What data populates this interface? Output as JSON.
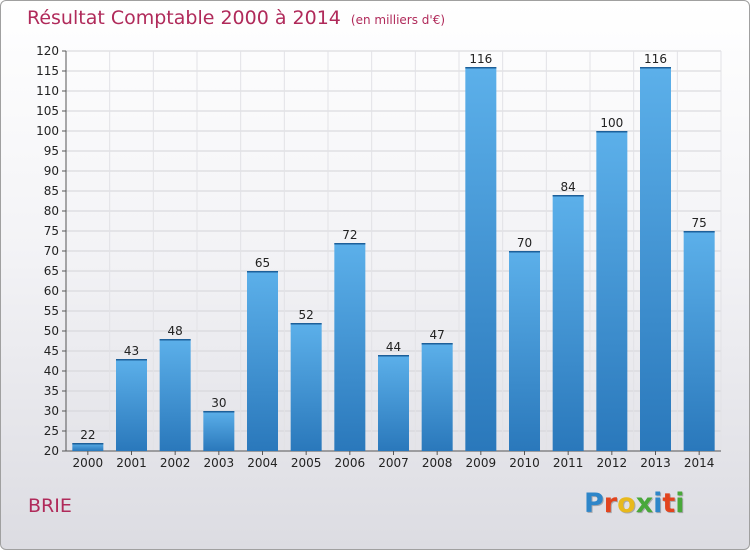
{
  "chart_data": {
    "type": "bar",
    "title": "Résultat Comptable 2000 à 2014",
    "subtitle": "(en milliers d'€)",
    "categories": [
      "2000",
      "2001",
      "2002",
      "2003",
      "2004",
      "2005",
      "2006",
      "2007",
      "2008",
      "2009",
      "2010",
      "2011",
      "2012",
      "2013",
      "2014"
    ],
    "values": [
      22,
      43,
      48,
      30,
      65,
      52,
      72,
      44,
      47,
      116,
      70,
      84,
      100,
      116,
      75
    ],
    "ylim": [
      20,
      120
    ],
    "ytick_step": 5,
    "xlabel": "",
    "ylabel": "",
    "grid": true,
    "legend": "none"
  },
  "footer": {
    "city": "BRIE",
    "logo_text": "Proxiti",
    "logo_colors": [
      "#2e86c9",
      "#e2441e",
      "#e8b91c",
      "#49a83a",
      "#2e86c9",
      "#e2441e",
      "#49a83a"
    ]
  },
  "colors": {
    "bar_light": "#5cb0ea",
    "bar_dark": "#2a78bb",
    "title": "#b02a5a"
  }
}
